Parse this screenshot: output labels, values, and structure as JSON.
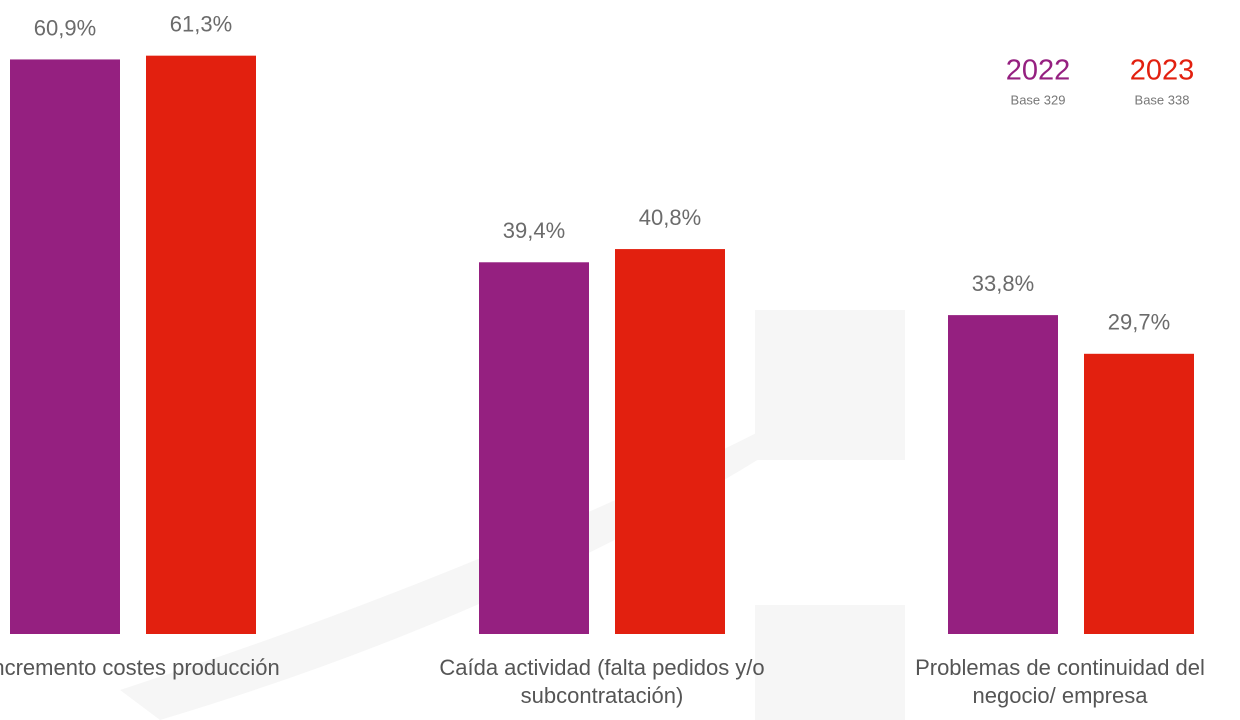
{
  "chart_data": {
    "type": "bar",
    "categories": [
      "Incremento costes producción",
      "Caída actividad (falta pedidos y/o subcontratación)",
      "Problemas de continuidad del negocio/ empresa"
    ],
    "series": [
      {
        "name": "2022",
        "base": "Base 329",
        "color": "#952080",
        "values": [
          60.9,
          39.4,
          33.8
        ],
        "value_labels": [
          "60,9%",
          "39,4%",
          "33,8%"
        ]
      },
      {
        "name": "2023",
        "base": "Base 338",
        "color": "#e2200f",
        "values": [
          61.3,
          40.8,
          29.7
        ],
        "value_labels": [
          "61,3%",
          "40,8%",
          "29,7%"
        ]
      }
    ],
    "ylim": [
      0,
      67.2
    ],
    "legend": "top-right"
  }
}
